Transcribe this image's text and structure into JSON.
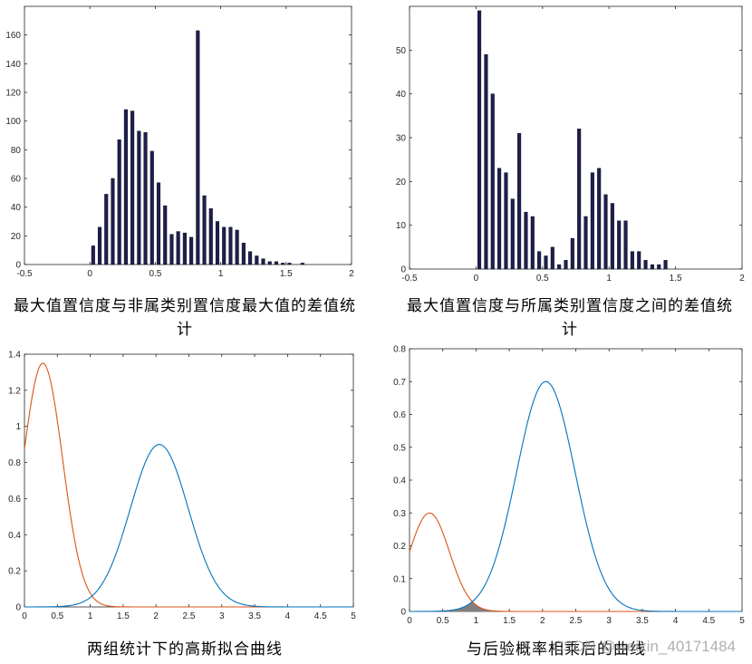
{
  "captions": {
    "tl": "最大值置信度与非属类别置信度最大值的差值统计",
    "tr": "最大值置信度与所属类别置信度之间的差值统计",
    "bl": "两组统计下的高斯拟合曲线",
    "br": "与后验概率相乘后的曲线"
  },
  "watermark": "CSDN @weixin_40171484",
  "colors": {
    "bar": "#1f1f4d",
    "blue": "#0072bd",
    "orange": "#d95319",
    "shade": "#808080",
    "axis": "#262626",
    "tick_text": "#262626"
  },
  "chart_data": [
    {
      "id": "tl",
      "type": "bar",
      "xlim": [
        -0.5,
        2
      ],
      "ylim": [
        0,
        180
      ],
      "xticks": [
        -0.5,
        0,
        0.5,
        1,
        1.5,
        2
      ],
      "xtick_labels": [
        "-0.5",
        "0",
        "0.5",
        "1",
        "1.5",
        "2"
      ],
      "yticks": [
        0,
        20,
        40,
        60,
        80,
        100,
        120,
        140,
        160
      ],
      "ytick_labels": [
        "0",
        "20",
        "40",
        "60",
        "80",
        "100",
        "120",
        "140",
        "160"
      ],
      "x": [
        0.025,
        0.075,
        0.125,
        0.175,
        0.225,
        0.275,
        0.325,
        0.375,
        0.425,
        0.475,
        0.525,
        0.575,
        0.625,
        0.675,
        0.725,
        0.775,
        0.825,
        0.875,
        0.925,
        0.975,
        1.025,
        1.075,
        1.125,
        1.175,
        1.225,
        1.275,
        1.325,
        1.375,
        1.425,
        1.475,
        1.525,
        1.575,
        1.625
      ],
      "values": [
        13,
        26,
        49,
        60,
        87,
        108,
        107,
        93,
        92,
        79,
        57,
        41,
        21,
        23,
        22,
        19,
        163,
        48,
        39,
        30,
        26,
        26,
        24,
        15,
        9,
        6,
        4,
        2,
        2,
        1,
        1,
        0,
        1
      ]
    },
    {
      "id": "tr",
      "type": "bar",
      "xlim": [
        -0.5,
        2
      ],
      "ylim": [
        0,
        60
      ],
      "xticks": [
        -0.5,
        0,
        0.5,
        1,
        1.5,
        2
      ],
      "xtick_labels": [
        "-0.5",
        "0",
        "0.5",
        "1",
        "1.5",
        "2"
      ],
      "yticks": [
        0,
        10,
        20,
        30,
        40,
        50
      ],
      "ytick_labels": [
        "0",
        "10",
        "20",
        "30",
        "40",
        "50"
      ],
      "x": [
        0.025,
        0.075,
        0.125,
        0.175,
        0.225,
        0.275,
        0.325,
        0.375,
        0.425,
        0.475,
        0.525,
        0.575,
        0.625,
        0.675,
        0.725,
        0.775,
        0.825,
        0.875,
        0.925,
        0.975,
        1.025,
        1.075,
        1.125,
        1.175,
        1.225,
        1.275,
        1.325,
        1.375,
        1.425
      ],
      "values": [
        59,
        49,
        40,
        23,
        22,
        16,
        31,
        13,
        12,
        4,
        3,
        5,
        1,
        2,
        7,
        32,
        12,
        22,
        23,
        17,
        15,
        11,
        11,
        4,
        4,
        2,
        1,
        1,
        2
      ]
    },
    {
      "id": "bl",
      "type": "line",
      "xlim": [
        0,
        5
      ],
      "ylim": [
        0,
        1.4
      ],
      "xticks": [
        0,
        0.5,
        1,
        1.5,
        2,
        2.5,
        3,
        3.5,
        4,
        4.5,
        5
      ],
      "xtick_labels": [
        "0",
        "0.5",
        "1",
        "1.5",
        "2",
        "2.5",
        "3",
        "3.5",
        "4",
        "4.5",
        "5"
      ],
      "yticks": [
        0,
        0.2,
        0.4,
        0.6,
        0.8,
        1,
        1.2,
        1.4
      ],
      "ytick_labels": [
        "0",
        "0.2",
        "0.4",
        "0.6",
        "0.8",
        "1",
        "1.2",
        "1.4"
      ],
      "series": [
        {
          "color_key": "orange",
          "gaussian": {
            "amp": 1.35,
            "mean": 0.28,
            "sd": 0.3
          }
        },
        {
          "color_key": "blue",
          "gaussian": {
            "amp": 0.9,
            "mean": 2.05,
            "sd": 0.44
          }
        }
      ]
    },
    {
      "id": "br",
      "type": "line",
      "xlim": [
        0,
        5
      ],
      "ylim": [
        0,
        0.8
      ],
      "xticks": [
        0,
        0.5,
        1,
        1.5,
        2,
        2.5,
        3,
        3.5,
        4,
        4.5,
        5
      ],
      "xtick_labels": [
        "0",
        "0.5",
        "1",
        "1.5",
        "2",
        "2.5",
        "3",
        "3.5",
        "4",
        "4.5",
        "5"
      ],
      "yticks": [
        0,
        0.1,
        0.2,
        0.3,
        0.4,
        0.5,
        0.6,
        0.7,
        0.8
      ],
      "ytick_labels": [
        "0",
        "0.1",
        "0.2",
        "0.3",
        "0.4",
        "0.5",
        "0.6",
        "0.7",
        "0.8"
      ],
      "series": [
        {
          "color_key": "orange",
          "gaussian": {
            "amp": 0.3,
            "mean": 0.3,
            "sd": 0.3
          }
        },
        {
          "color_key": "blue",
          "gaussian": {
            "amp": 0.7,
            "mean": 2.05,
            "sd": 0.44
          }
        }
      ],
      "shaded_overlap": true
    }
  ]
}
